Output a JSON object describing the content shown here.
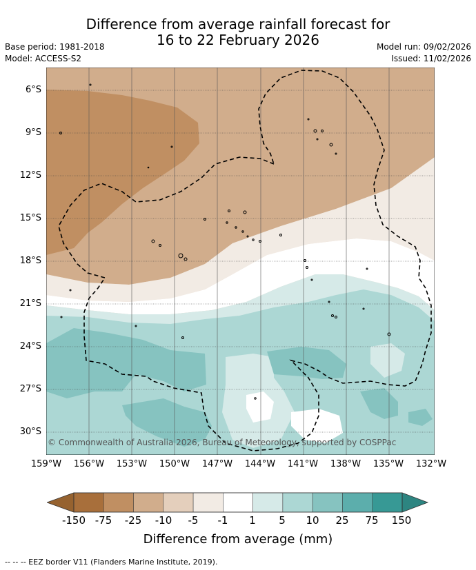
{
  "header": {
    "title_line1": "Difference from average rainfall forecast for",
    "title_line2": "16 to 22 February 2026",
    "base_period": "Base period: 1981-2018",
    "model": "Model: ACCESS-S2",
    "model_run": "Model run: 09/02/2026",
    "issued": "Issued: 11/02/2026"
  },
  "map": {
    "lat_labels": [
      "6°S",
      "9°S",
      "12°S",
      "15°S",
      "18°S",
      "21°S",
      "24°S",
      "27°S",
      "30°S"
    ],
    "lon_labels": [
      "159°W",
      "156°W",
      "153°W",
      "150°W",
      "147°W",
      "144°W",
      "141°W",
      "138°W",
      "135°W",
      "132°W"
    ],
    "copyright": "© Commonwealth of Australia 2026, Bureau of Meteorology, supported by COSPPac"
  },
  "colorbar": {
    "labels": [
      "-150",
      "-75",
      "-25",
      "-10",
      "-5",
      "-1",
      "1",
      "5",
      "10",
      "25",
      "75",
      "150"
    ],
    "colors": [
      "#a86f3b",
      "#c08f62",
      "#d1ad8c",
      "#e4cfbc",
      "#f2ebe4",
      "#ffffff",
      "#d6eae8",
      "#acd7d4",
      "#86c3c0",
      "#5caeac",
      "#379995"
    ],
    "extend_low_color": "#96622f",
    "extend_high_color": "#2d8581",
    "title": "Difference from average (mm)"
  },
  "footnote": "-- -- -- EEZ border V11 (Flanders Marine Institute, 2019)."
}
